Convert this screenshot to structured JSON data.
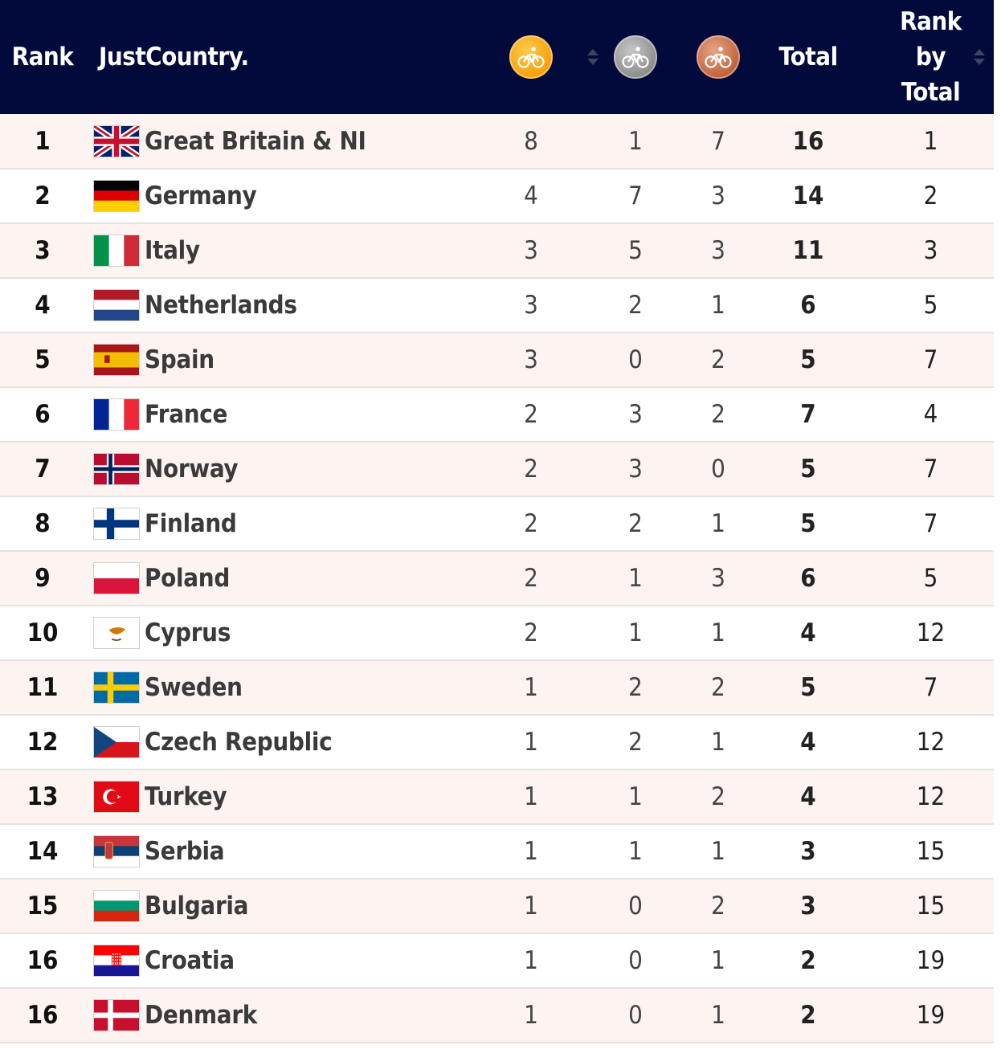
{
  "header": {
    "rank": "Rank",
    "country": "JustCountry.",
    "gold_icon": "gold-medal-cycling-icon",
    "silver_icon": "silver-medal-cycling-icon",
    "bronze_icon": "bronze-medal-cycling-icon",
    "total": "Total",
    "rank_by_total_line1": "Rank",
    "rank_by_total_line2": "by",
    "rank_by_total_line3": "Total"
  },
  "colors": {
    "header_bg": "#020a3c",
    "row_alt": "#fdf3f1",
    "gold": "#f5a10b",
    "silver": "#8d8d8d",
    "bronze": "#c0623c"
  },
  "rows": [
    {
      "rank": "1",
      "country": "Great Britain & NI",
      "flag": "gb",
      "gold": "8",
      "silver": "1",
      "bronze": "7",
      "total": "16",
      "rank_by_total": "1"
    },
    {
      "rank": "2",
      "country": "Germany",
      "flag": "de",
      "gold": "4",
      "silver": "7",
      "bronze": "3",
      "total": "14",
      "rank_by_total": "2"
    },
    {
      "rank": "3",
      "country": "Italy",
      "flag": "it",
      "gold": "3",
      "silver": "5",
      "bronze": "3",
      "total": "11",
      "rank_by_total": "3"
    },
    {
      "rank": "4",
      "country": "Netherlands",
      "flag": "nl",
      "gold": "3",
      "silver": "2",
      "bronze": "1",
      "total": "6",
      "rank_by_total": "5"
    },
    {
      "rank": "5",
      "country": "Spain",
      "flag": "es",
      "gold": "3",
      "silver": "0",
      "bronze": "2",
      "total": "5",
      "rank_by_total": "7"
    },
    {
      "rank": "6",
      "country": "France",
      "flag": "fr",
      "gold": "2",
      "silver": "3",
      "bronze": "2",
      "total": "7",
      "rank_by_total": "4"
    },
    {
      "rank": "7",
      "country": "Norway",
      "flag": "no",
      "gold": "2",
      "silver": "3",
      "bronze": "0",
      "total": "5",
      "rank_by_total": "7"
    },
    {
      "rank": "8",
      "country": "Finland",
      "flag": "fi",
      "gold": "2",
      "silver": "2",
      "bronze": "1",
      "total": "5",
      "rank_by_total": "7"
    },
    {
      "rank": "9",
      "country": "Poland",
      "flag": "pl",
      "gold": "2",
      "silver": "1",
      "bronze": "3",
      "total": "6",
      "rank_by_total": "5"
    },
    {
      "rank": "10",
      "country": "Cyprus",
      "flag": "cy",
      "gold": "2",
      "silver": "1",
      "bronze": "1",
      "total": "4",
      "rank_by_total": "12"
    },
    {
      "rank": "11",
      "country": "Sweden",
      "flag": "se",
      "gold": "1",
      "silver": "2",
      "bronze": "2",
      "total": "5",
      "rank_by_total": "7"
    },
    {
      "rank": "12",
      "country": "Czech Republic",
      "flag": "cz",
      "gold": "1",
      "silver": "2",
      "bronze": "1",
      "total": "4",
      "rank_by_total": "12"
    },
    {
      "rank": "13",
      "country": "Turkey",
      "flag": "tr",
      "gold": "1",
      "silver": "1",
      "bronze": "2",
      "total": "4",
      "rank_by_total": "12"
    },
    {
      "rank": "14",
      "country": "Serbia",
      "flag": "rs",
      "gold": "1",
      "silver": "1",
      "bronze": "1",
      "total": "3",
      "rank_by_total": "15"
    },
    {
      "rank": "15",
      "country": "Bulgaria",
      "flag": "bg",
      "gold": "1",
      "silver": "0",
      "bronze": "2",
      "total": "3",
      "rank_by_total": "15"
    },
    {
      "rank": "16",
      "country": "Croatia",
      "flag": "hr",
      "gold": "1",
      "silver": "0",
      "bronze": "1",
      "total": "2",
      "rank_by_total": "19"
    },
    {
      "rank": "16",
      "country": "Denmark",
      "flag": "dk",
      "gold": "1",
      "silver": "0",
      "bronze": "1",
      "total": "2",
      "rank_by_total": "19"
    }
  ]
}
